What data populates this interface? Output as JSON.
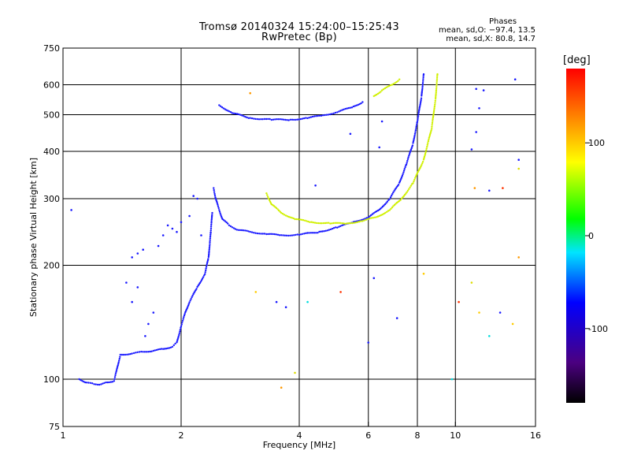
{
  "chart_data": {
    "type": "scatter",
    "title": "Tromsø 20140324 15:24:00–15:25:43",
    "subtitle": "RwPretec (Bp)",
    "xlabel": "Frequency [MHz]",
    "ylabel": "Stationary phase Virtual Height [km]",
    "xscale": "log2",
    "yscale": "log",
    "xlim": [
      1,
      16
    ],
    "ylim": [
      75,
      750
    ],
    "xticks": [
      1,
      2,
      4,
      6,
      8,
      10,
      16
    ],
    "yticks": [
      75,
      100,
      200,
      300,
      400,
      500,
      600,
      750
    ],
    "grid": true,
    "stats": {
      "header": "Phases",
      "line1": "mean, sd,O: −97.4, 13.5",
      "line2": "mean, sd,X:  80.8, 14.7"
    },
    "colorbar": {
      "label": "[deg]",
      "ticks": [
        100,
        0,
        -100
      ],
      "range": [
        -180,
        180
      ]
    },
    "o_trace_low": {
      "name": "",
      "color": "#1a1aff",
      "points": [
        [
          1.1,
          100
        ],
        [
          1.15,
          98
        ],
        [
          1.2,
          97
        ],
        [
          1.25,
          97
        ],
        [
          1.3,
          98
        ],
        [
          1.35,
          99
        ],
        [
          1.4,
          116
        ],
        [
          1.5,
          117
        ],
        [
          1.6,
          118
        ],
        [
          1.7,
          119
        ],
        [
          1.8,
          120
        ],
        [
          1.9,
          122
        ],
        [
          1.95,
          125
        ],
        [
          2.0,
          138
        ],
        [
          2.05,
          150
        ],
        [
          2.1,
          160
        ],
        [
          2.2,
          175
        ],
        [
          2.3,
          190
        ],
        [
          2.35,
          210
        ],
        [
          2.38,
          245
        ],
        [
          2.4,
          275
        ]
      ]
    },
    "o_trace_f": {
      "name": "",
      "color": "#1a1aff",
      "points": [
        [
          2.42,
          320
        ],
        [
          2.45,
          300
        ],
        [
          2.5,
          280
        ],
        [
          2.55,
          265
        ],
        [
          2.65,
          255
        ],
        [
          2.8,
          248
        ],
        [
          3.0,
          245
        ],
        [
          3.3,
          242
        ],
        [
          3.6,
          240
        ],
        [
          4.0,
          241
        ],
        [
          4.5,
          245
        ],
        [
          5.0,
          252
        ],
        [
          5.5,
          260
        ],
        [
          6.0,
          268
        ],
        [
          6.4,
          280
        ],
        [
          6.8,
          300
        ],
        [
          7.2,
          330
        ],
        [
          7.5,
          370
        ],
        [
          7.8,
          420
        ],
        [
          8.0,
          480
        ],
        [
          8.2,
          560
        ],
        [
          8.3,
          640
        ]
      ]
    },
    "o_trace_es": {
      "name": "",
      "color": "#1a1aff",
      "points": [
        [
          2.5,
          530
        ],
        [
          2.7,
          505
        ],
        [
          3.0,
          490
        ],
        [
          3.4,
          485
        ],
        [
          3.8,
          485
        ],
        [
          4.2,
          490
        ],
        [
          4.6,
          498
        ],
        [
          5.0,
          508
        ],
        [
          5.5,
          525
        ],
        [
          5.8,
          540
        ]
      ]
    },
    "x_trace_f": {
      "name": "",
      "color": "#d0f000",
      "points": [
        [
          3.3,
          310
        ],
        [
          3.4,
          290
        ],
        [
          3.6,
          275
        ],
        [
          3.9,
          265
        ],
        [
          4.3,
          260
        ],
        [
          4.8,
          258
        ],
        [
          5.3,
          258
        ],
        [
          5.8,
          262
        ],
        [
          6.3,
          268
        ],
        [
          6.8,
          280
        ],
        [
          7.3,
          300
        ],
        [
          7.8,
          330
        ],
        [
          8.3,
          380
        ],
        [
          8.7,
          460
        ],
        [
          8.9,
          550
        ],
        [
          9.0,
          640
        ]
      ]
    },
    "x_trace_es": {
      "name": "",
      "color": "#d0f000",
      "points": [
        [
          6.2,
          560
        ],
        [
          6.5,
          580
        ],
        [
          6.9,
          600
        ],
        [
          7.2,
          620
        ]
      ]
    },
    "scatter_blue": {
      "color": "#1a1aff",
      "points": [
        [
          1.05,
          280
        ],
        [
          1.5,
          210
        ],
        [
          1.55,
          215
        ],
        [
          1.6,
          220
        ],
        [
          1.62,
          130
        ],
        [
          1.65,
          140
        ],
        [
          1.7,
          150
        ],
        [
          1.75,
          225
        ],
        [
          1.8,
          240
        ],
        [
          1.85,
          255
        ],
        [
          1.9,
          250
        ],
        [
          1.95,
          245
        ],
        [
          2.0,
          260
        ],
        [
          2.1,
          270
        ],
        [
          2.15,
          305
        ],
        [
          2.2,
          300
        ],
        [
          2.25,
          240
        ],
        [
          1.45,
          180
        ],
        [
          1.55,
          175
        ],
        [
          1.5,
          160
        ],
        [
          3.5,
          160
        ],
        [
          3.7,
          155
        ],
        [
          4.4,
          325
        ],
        [
          5.4,
          445
        ],
        [
          6.4,
          410
        ],
        [
          6.5,
          480
        ],
        [
          7.1,
          145
        ],
        [
          6.0,
          125
        ],
        [
          11.0,
          405
        ],
        [
          11.3,
          585
        ],
        [
          11.5,
          520
        ],
        [
          12.2,
          315
        ],
        [
          13.0,
          150
        ],
        [
          14.2,
          620
        ],
        [
          14.5,
          380
        ],
        [
          11.8,
          580
        ],
        [
          11.3,
          450
        ],
        [
          6.2,
          185
        ]
      ]
    },
    "scatter_other": {
      "points": [
        [
          3.0,
          570
        ],
        [
          3.1,
          170
        ],
        [
          4.2,
          160
        ],
        [
          5.1,
          170
        ],
        [
          3.9,
          104
        ],
        [
          3.6,
          95
        ],
        [
          8.3,
          190
        ],
        [
          9.8,
          100
        ],
        [
          10.2,
          160
        ],
        [
          11.0,
          180
        ],
        [
          11.2,
          320
        ],
        [
          11.5,
          150
        ],
        [
          12.2,
          130
        ],
        [
          13.2,
          320
        ],
        [
          14.5,
          360
        ],
        [
          14.5,
          210
        ],
        [
          14.0,
          140
        ]
      ]
    }
  }
}
